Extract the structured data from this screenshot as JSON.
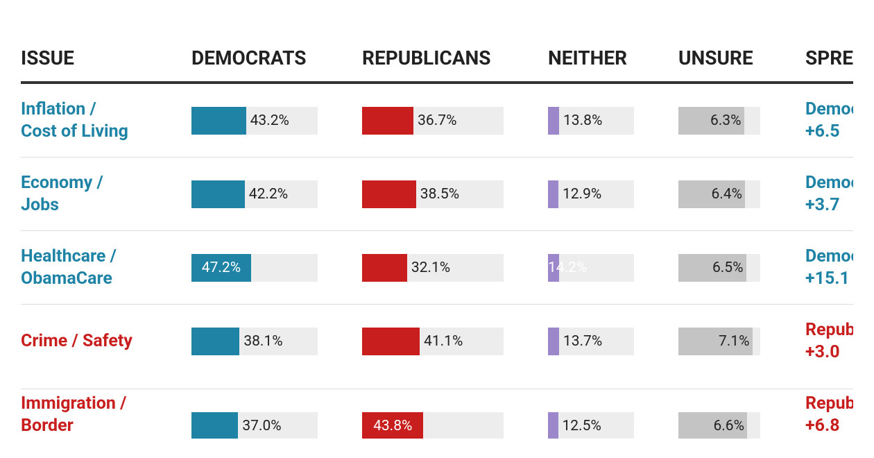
{
  "table": {
    "header": [
      "ISSUE",
      "DEMOCRATS",
      "REPUBLICANS",
      "NEITHER",
      "UNSURE",
      "SPREAD"
    ],
    "colors": {
      "democrats": "#1f83a6",
      "republicans": "#c81e1e",
      "neither": "#9b87c9",
      "unsure": "#c4c4c4",
      "track": "#ededed"
    },
    "rows": [
      {
        "issue": [
          "Inflation /",
          "Cost of Living"
        ],
        "color": "#1f83a6",
        "democrats": {
          "value": 43.2,
          "label": "43.2%"
        },
        "republicans": {
          "value": 36.7,
          "label": "36.7%"
        },
        "neither": {
          "value": 13.8,
          "label": "13.8%"
        },
        "unsure": {
          "value": 6.3,
          "label": "6.3%"
        },
        "spread": [
          "Democrats",
          "+6.5"
        ]
      },
      {
        "issue": [
          "Economy /",
          "Jobs"
        ],
        "color": "#1f83a6",
        "democrats": {
          "value": 42.2,
          "label": "42.2%"
        },
        "republicans": {
          "value": 38.5,
          "label": "38.5%"
        },
        "neither": {
          "value": 12.9,
          "label": "12.9%"
        },
        "unsure": {
          "value": 6.4,
          "label": "6.4%"
        },
        "spread": [
          "Democrats",
          "+3.7"
        ]
      },
      {
        "issue": [
          "Healthcare /",
          "ObamaCare"
        ],
        "color": "#1f83a6",
        "democrats": {
          "value": 47.2,
          "label": "47.2%"
        },
        "republicans": {
          "value": 32.1,
          "label": "32.1%"
        },
        "neither": {
          "value": 14.2,
          "label": "14.2%"
        },
        "unsure": {
          "value": 6.5,
          "label": "6.5%"
        },
        "spread": [
          "Democrats",
          "+15.1"
        ]
      },
      {
        "issue": [
          "Crime / Safety"
        ],
        "color": "#c81e1e",
        "democrats": {
          "value": 38.1,
          "label": "38.1%"
        },
        "republicans": {
          "value": 41.1,
          "label": "41.1%"
        },
        "neither": {
          "value": 13.7,
          "label": "13.7%"
        },
        "unsure": {
          "value": 7.1,
          "label": "7.1%"
        },
        "spread": [
          "Republicans",
          "+3.0"
        ]
      },
      {
        "issue": [
          "Immigration /",
          "Border"
        ],
        "color": "#c81e1e",
        "democrats": {
          "value": 37.0,
          "label": "37.0%"
        },
        "republicans": {
          "value": 43.8,
          "label": "43.8%"
        },
        "neither": {
          "value": 12.5,
          "label": "12.5%"
        },
        "unsure": {
          "value": 6.6,
          "label": "6.6%"
        },
        "spread": [
          "Republicans",
          "+6.8"
        ]
      }
    ]
  }
}
